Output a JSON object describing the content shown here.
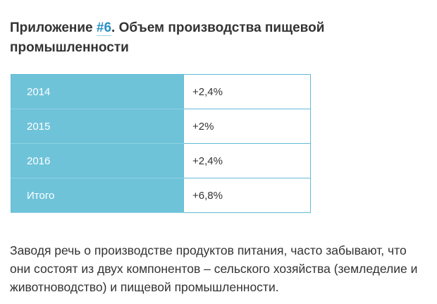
{
  "heading": {
    "prefix": "Приложение ",
    "link_text": "#6",
    "suffix": ". Объем производства пищевой промышленности"
  },
  "table": {
    "rows": [
      {
        "label": "2014",
        "value": "+2,4%"
      },
      {
        "label": "2015",
        "value": "+2%"
      },
      {
        "label": "2016",
        "value": "+2,4%"
      },
      {
        "label": "Итого",
        "value": "+6,8%"
      }
    ]
  },
  "paragraph": "Заводя речь о производстве продуктов питания, часто забывают, что они состоят из двух компонентов – сельского хозяйства (земледелие и животноводство) и пищевой промышленности.",
  "colors": {
    "accent": "#6ec3d9",
    "link": "#2a8fc4",
    "text": "#333333"
  }
}
